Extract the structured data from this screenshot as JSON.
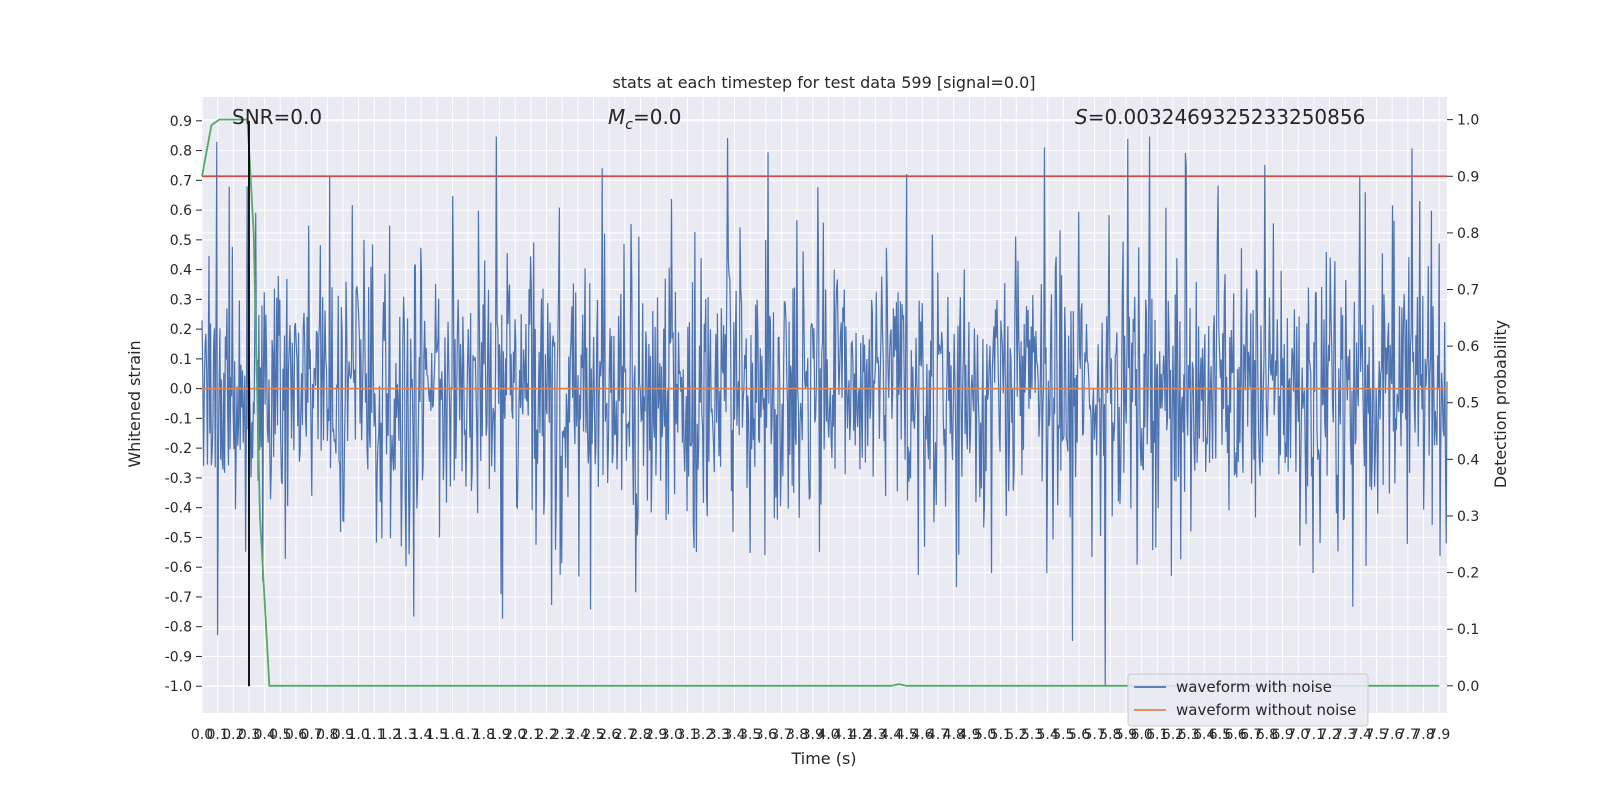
{
  "chart_data": {
    "type": "line",
    "title": "stats at each timestep for test data 599 [signal=0.0]",
    "xlabel": "Time (s)",
    "ylabel": "Whitened strain",
    "y2label": "Detection probability",
    "xlim": [
      0.0,
      7.95
    ],
    "ylim": [
      -1.09,
      0.98
    ],
    "y2lim": [
      -0.048,
      1.04
    ],
    "x_ticks": [
      "0.0",
      "0.1",
      "0.2",
      "0.3",
      "0.4",
      "0.5",
      "0.6",
      "0.7",
      "0.8",
      "0.9",
      "1.0",
      "1.1",
      "1.2",
      "1.3",
      "1.4",
      "1.5",
      "1.6",
      "1.7",
      "1.8",
      "1.9",
      "2.0",
      "2.1",
      "2.2",
      "2.3",
      "2.4",
      "2.5",
      "2.6",
      "2.7",
      "2.8",
      "2.9",
      "3.0",
      "3.1",
      "3.2",
      "3.3",
      "3.4",
      "3.5",
      "3.6",
      "3.7",
      "3.8",
      "3.9",
      "4.0",
      "4.1",
      "4.2",
      "4.3",
      "4.4",
      "4.5",
      "4.6",
      "4.7",
      "4.8",
      "4.9",
      "5.0",
      "5.1",
      "5.2",
      "5.3",
      "5.4",
      "5.5",
      "5.6",
      "5.7",
      "5.8",
      "5.9",
      "6.0",
      "6.1",
      "6.2",
      "6.3",
      "6.4",
      "6.5",
      "6.6",
      "6.7",
      "6.8",
      "6.9",
      "7.0",
      "7.1",
      "7.2",
      "7.3",
      "7.4",
      "7.5",
      "7.6",
      "7.7",
      "7.8",
      "7.9"
    ],
    "y_ticks": [
      "0.9",
      "0.8",
      "0.7",
      "0.6",
      "0.5",
      "0.4",
      "0.3",
      "0.2",
      "0.1",
      "0.0",
      "-0.1",
      "-0.2",
      "-0.3",
      "-0.4",
      "-0.5",
      "-0.6",
      "-0.7",
      "-0.8",
      "-0.9",
      "-1.0"
    ],
    "y2_ticks": [
      "1.0",
      "0.9",
      "0.8",
      "0.7",
      "0.6",
      "0.5",
      "0.4",
      "0.3",
      "0.2",
      "0.1",
      "0.0"
    ],
    "annotations": {
      "snr": "SNR=0.0",
      "mc_symbol": "M",
      "mc_sub": "c",
      "mc_value": "=0.0",
      "s_symbol": "S",
      "s_value": "=0.0032469325233250856"
    },
    "noise_envelope": {
      "base_amplitude": 0.5,
      "peak_max": 0.9,
      "peak_min": -1.0,
      "approx_samples": 1600
    },
    "series": [
      {
        "name": "waveform with noise",
        "color": "#4c72b0",
        "axis": "left",
        "note_values": "dense noise, approx ±0.5 with spikes to 0.9 / -1.0"
      },
      {
        "name": "waveform without noise",
        "color": "#dd8452",
        "axis": "left",
        "x": [
          0.0,
          7.95
        ],
        "y": [
          0.0,
          0.0
        ]
      },
      {
        "name": "",
        "color": "#55a868",
        "axis": "right",
        "x": [
          0.0,
          0.06,
          0.11,
          0.2,
          0.29,
          0.33,
          0.37,
          0.43,
          4.3,
          4.4,
          4.45,
          4.5,
          7.9
        ],
        "y": [
          0.9,
          0.99,
          1.0,
          1.0,
          1.0,
          0.8,
          0.3,
          0.0,
          0.0,
          0.0,
          0.003,
          0.0,
          0.0
        ]
      }
    ],
    "threshold": {
      "axis": "right",
      "value": 0.9,
      "color": "#c44e52"
    },
    "vline": {
      "x": 0.3,
      "ymin": -1.0,
      "ymax": 0.9,
      "color": "#000000"
    },
    "grid": true,
    "legend_position": "lower right",
    "legend": [
      "waveform with noise",
      "waveform without noise"
    ]
  }
}
